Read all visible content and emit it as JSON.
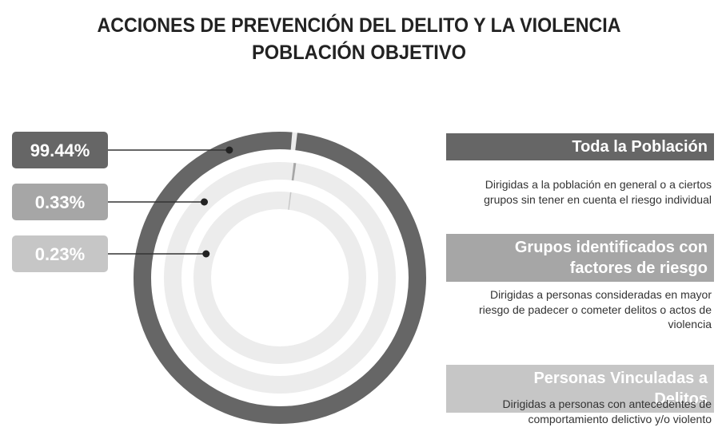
{
  "chart_data": {
    "type": "radial",
    "title": "ACCIONES DE PREVENCIÓN DEL DELITO Y LA VIOLENCIA",
    "subtitle": "POBLACIÓN OBJETIVO",
    "categories": [
      "Toda la Población",
      "Grupos identificados con factores de riesgo",
      "Personas Vinculadas a Delitos"
    ],
    "descriptions": [
      "Dirigidas a la población en general o a ciertos grupos sin tener en cuenta el riesgo individual",
      "Dirigidas a personas consideradas en mayor riesgo de padecer o cometer delitos o actos de violencia",
      "Dirigidas a personas con antecedentes de comportamiento delictivo y/o violento"
    ],
    "values": [
      99.44,
      0.33,
      0.23
    ],
    "value_labels": [
      "99.44%",
      "0.33%",
      "0.23%"
    ],
    "colors": [
      "#666666",
      "#a6a6a6",
      "#c6c6c6"
    ],
    "ylim": [
      0,
      100
    ]
  }
}
